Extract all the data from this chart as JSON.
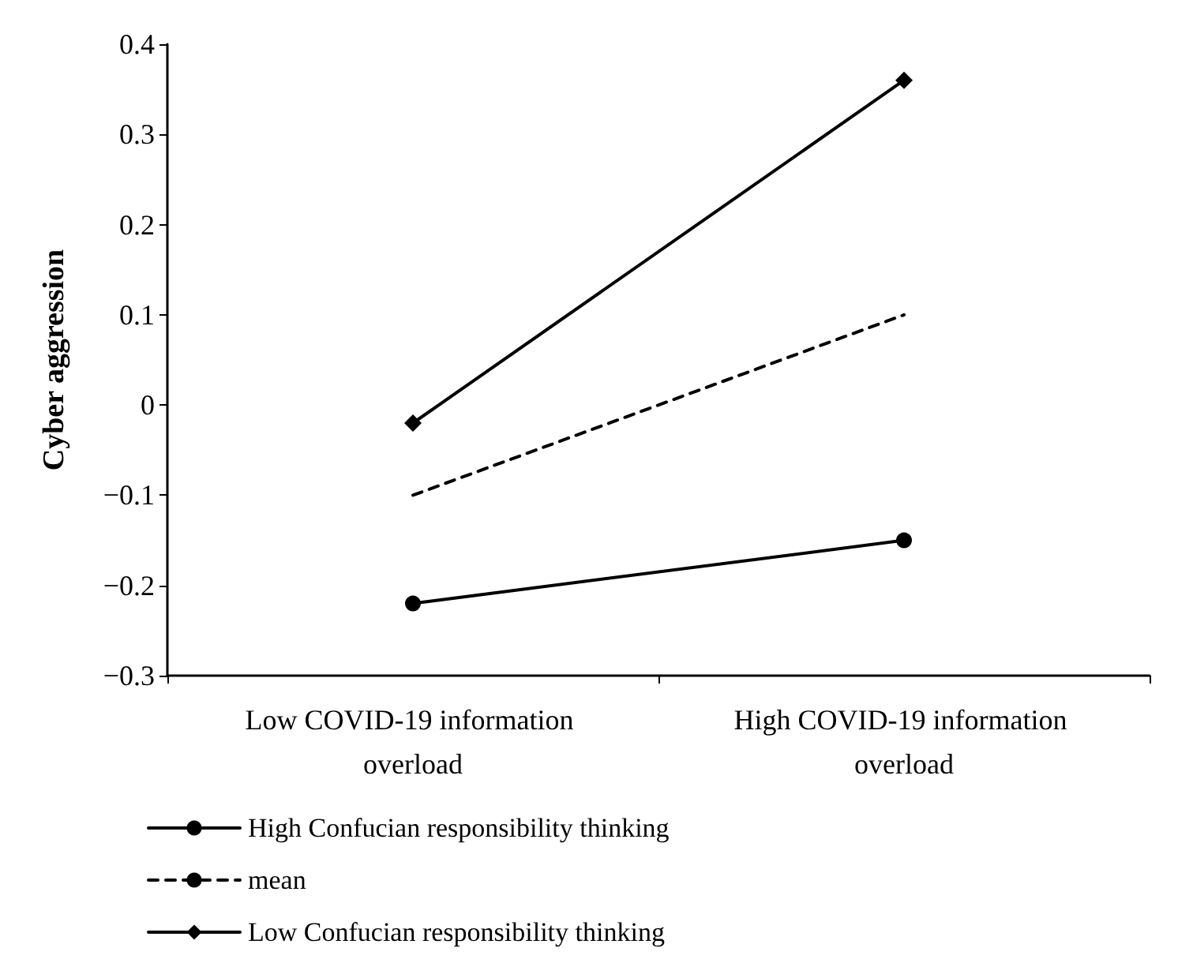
{
  "chart_data": {
    "type": "line",
    "ylabel": "Cyber aggression",
    "categories": [
      "Low COVID-19 information overload",
      "High COVID-19 information overload"
    ],
    "series": [
      {
        "name": "High Confucian responsibility thinking",
        "color": "#000000",
        "values": [
          -0.22,
          -0.15
        ],
        "marker": "circle",
        "line_style": "solid"
      },
      {
        "name": "mean",
        "color": "#000000",
        "values": [
          -0.1,
          0.1
        ],
        "marker": "none",
        "line_style": "dashed"
      },
      {
        "name": "Low Confucian responsibility thinking",
        "color": "#000000",
        "values": [
          -0.02,
          0.36
        ],
        "marker": "diamond",
        "line_style": "solid"
      }
    ],
    "ylim": [
      -0.3,
      0.4
    ],
    "yticks": [
      {
        "value": -0.3,
        "label": "−0.3"
      },
      {
        "value": -0.2,
        "label": "−0.2"
      },
      {
        "value": -0.1,
        "label": "−0.1"
      },
      0,
      0.1,
      0.2,
      0.3,
      0.4
    ],
    "grid": false,
    "legend": "bottom"
  }
}
